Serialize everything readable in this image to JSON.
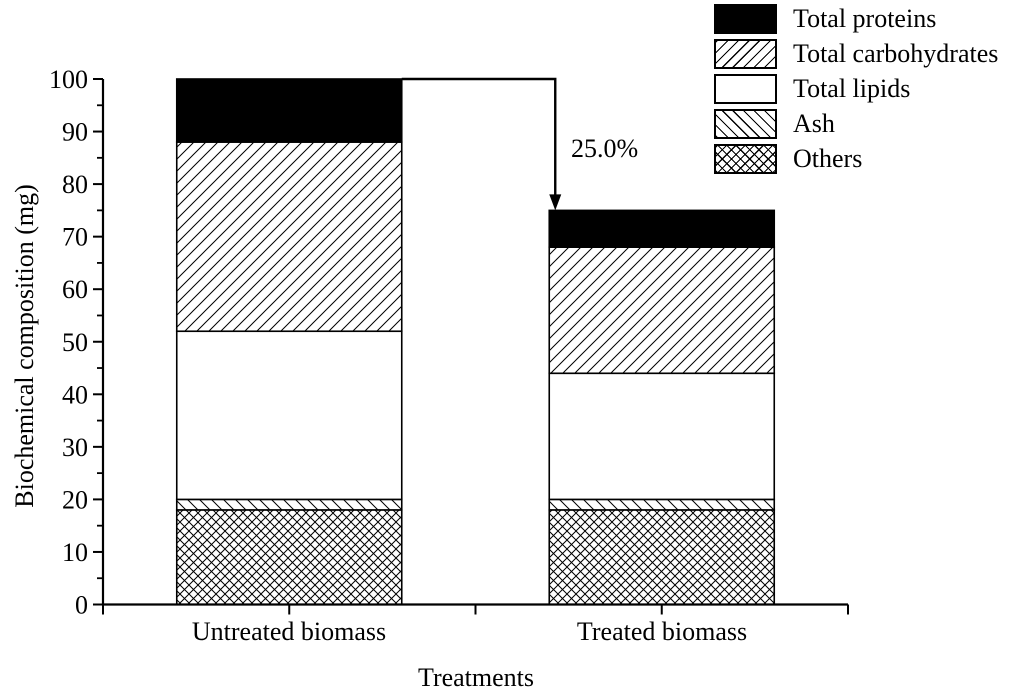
{
  "figure": {
    "background": "#ffffff",
    "foreground": "#000000"
  },
  "chart_data": {
    "type": "bar",
    "stacked": true,
    "orientation": "vertical",
    "title": "",
    "xlabel": "Treatments",
    "ylabel": "Biochemical composition (mg)",
    "categories": [
      "Untreated biomass",
      "Treated biomass"
    ],
    "series": [
      {
        "name": "Others",
        "pattern": "crosshatch",
        "values": [
          18,
          18
        ]
      },
      {
        "name": "Ash",
        "pattern": "diagonal-down",
        "values": [
          2,
          2
        ]
      },
      {
        "name": "Total lipids",
        "pattern": "solid-white",
        "values": [
          32,
          24
        ]
      },
      {
        "name": "Total carbohydrates",
        "pattern": "diagonal-up",
        "values": [
          36,
          24
        ]
      },
      {
        "name": "Total proteins",
        "pattern": "solid-black",
        "values": [
          12,
          7
        ]
      }
    ],
    "totals": [
      100,
      75
    ],
    "ylim": [
      0,
      100
    ],
    "y_major_ticks": [
      0,
      10,
      20,
      30,
      40,
      50,
      60,
      70,
      80,
      90,
      100
    ],
    "y_minor_step": 5,
    "grid": false,
    "legend": {
      "position": "top-right",
      "entries": [
        "Total proteins",
        "Total carbohydrates",
        "Total lipids",
        "Ash",
        "Others"
      ]
    },
    "annotation": {
      "label": "25.0%",
      "from_category": "Untreated biomass",
      "from_value": 100,
      "to_category": "Treated biomass",
      "to_value": 75
    }
  }
}
